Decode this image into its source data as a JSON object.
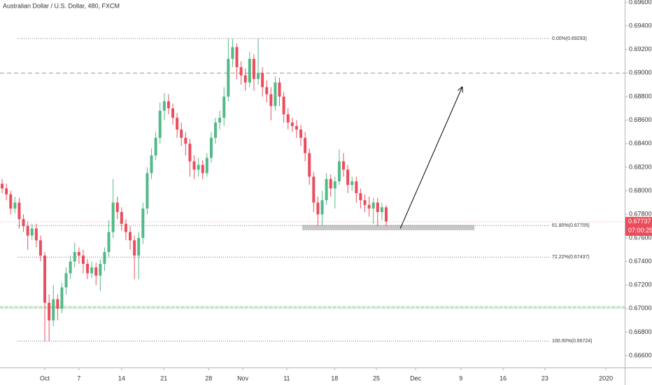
{
  "chart_data": {
    "type": "candlestick",
    "title": "Australian Dollar / U.S. Dollar, 480, FXCM",
    "x": [
      0,
      1,
      2,
      3,
      4,
      5,
      6,
      7,
      8,
      9,
      10,
      11,
      12,
      13,
      14,
      15,
      16,
      17,
      18,
      19,
      20,
      21,
      22,
      23,
      24,
      25,
      26,
      27,
      28,
      29,
      30,
      31,
      32,
      33,
      34,
      35,
      36,
      37,
      38,
      39,
      40,
      41,
      42,
      43,
      44,
      45,
      46,
      47,
      48,
      49,
      50,
      51,
      52,
      53,
      54,
      55,
      56,
      57,
      58,
      59,
      60,
      61,
      62,
      63,
      64,
      65,
      66,
      67,
      68,
      69,
      70,
      71,
      72,
      73,
      74,
      75,
      76,
      77,
      78,
      79,
      80,
      81,
      82,
      83,
      84,
      85,
      86,
      87,
      88,
      89,
      90
    ],
    "series": [
      {
        "up_color": "#53b987",
        "down_color": "#eb4d5c",
        "open": [
          0.6806,
          0.6802,
          0.6797,
          0.6785,
          0.679,
          0.6776,
          0.677,
          0.6762,
          0.6768,
          0.6758,
          0.6745,
          0.6705,
          0.669,
          0.6708,
          0.67,
          0.6718,
          0.673,
          0.674,
          0.6748,
          0.6745,
          0.6738,
          0.673,
          0.6735,
          0.6728,
          0.6738,
          0.6748,
          0.6765,
          0.679,
          0.6782,
          0.6772,
          0.6765,
          0.6758,
          0.6745,
          0.676,
          0.6785,
          0.6815,
          0.683,
          0.6845,
          0.6868,
          0.6876,
          0.687,
          0.6862,
          0.6852,
          0.6845,
          0.684,
          0.6825,
          0.6818,
          0.6822,
          0.6815,
          0.6828,
          0.6845,
          0.6858,
          0.6862,
          0.688,
          0.6912,
          0.6922,
          0.6905,
          0.6898,
          0.6892,
          0.6912,
          0.6895,
          0.69,
          0.6888,
          0.6882,
          0.6872,
          0.6892,
          0.688,
          0.6865,
          0.6858,
          0.6855,
          0.6852,
          0.6845,
          0.6832,
          0.6812,
          0.679,
          0.678,
          0.6792,
          0.681,
          0.6802,
          0.6808,
          0.6825,
          0.6818,
          0.6805,
          0.6808,
          0.6798,
          0.6792,
          0.6788,
          0.6785,
          0.679,
          0.6782,
          0.6786
        ],
        "high": [
          0.681,
          0.6806,
          0.68,
          0.6795,
          0.6794,
          0.678,
          0.6774,
          0.6772,
          0.6772,
          0.6762,
          0.6748,
          0.6712,
          0.672,
          0.6712,
          0.6722,
          0.6735,
          0.6745,
          0.6756,
          0.6752,
          0.675,
          0.6742,
          0.674,
          0.6739,
          0.6742,
          0.6752,
          0.6775,
          0.681,
          0.6795,
          0.6786,
          0.6776,
          0.677,
          0.6762,
          0.6765,
          0.679,
          0.682,
          0.6836,
          0.685,
          0.6875,
          0.6883,
          0.6882,
          0.6874,
          0.6866,
          0.6858,
          0.685,
          0.6844,
          0.683,
          0.6828,
          0.6826,
          0.6832,
          0.685,
          0.6862,
          0.6868,
          0.6888,
          0.6929,
          0.6929,
          0.6925,
          0.691,
          0.6904,
          0.6918,
          0.6916,
          0.6929,
          0.6905,
          0.6894,
          0.6888,
          0.6897,
          0.6896,
          0.6884,
          0.687,
          0.6862,
          0.686,
          0.6856,
          0.685,
          0.6836,
          0.6816,
          0.6795,
          0.68,
          0.6815,
          0.6814,
          0.6812,
          0.6835,
          0.6832,
          0.6822,
          0.6812,
          0.6812,
          0.6802,
          0.6797,
          0.6795,
          0.6794,
          0.6794,
          0.679,
          0.6788
        ],
        "low": [
          0.6798,
          0.6792,
          0.678,
          0.6781,
          0.6768,
          0.6765,
          0.675,
          0.6758,
          0.6752,
          0.674,
          0.6672,
          0.6672,
          0.6685,
          0.669,
          0.6696,
          0.6712,
          0.6725,
          0.6735,
          0.6738,
          0.673,
          0.6725,
          0.6726,
          0.672,
          0.6715,
          0.6732,
          0.6744,
          0.676,
          0.6776,
          0.6766,
          0.6758,
          0.675,
          0.6725,
          0.6725,
          0.6755,
          0.678,
          0.681,
          0.6826,
          0.684,
          0.686,
          0.6865,
          0.6856,
          0.6845,
          0.6838,
          0.683,
          0.6812,
          0.681,
          0.6812,
          0.681,
          0.6812,
          0.6824,
          0.684,
          0.6852,
          0.6855,
          0.6876,
          0.6905,
          0.6895,
          0.689,
          0.6885,
          0.6888,
          0.6885,
          0.689,
          0.688,
          0.6875,
          0.686,
          0.6868,
          0.6872,
          0.6858,
          0.6852,
          0.685,
          0.6845,
          0.6838,
          0.6825,
          0.6805,
          0.6782,
          0.677,
          0.677,
          0.6788,
          0.6795,
          0.6785,
          0.6805,
          0.6812,
          0.6798,
          0.68,
          0.679,
          0.6785,
          0.6782,
          0.6778,
          0.6772,
          0.677,
          0.6775,
          0.677
        ],
        "close": [
          0.6802,
          0.6797,
          0.6785,
          0.679,
          0.6776,
          0.677,
          0.6762,
          0.6768,
          0.6758,
          0.6745,
          0.6705,
          0.669,
          0.6708,
          0.67,
          0.6718,
          0.673,
          0.674,
          0.6748,
          0.6745,
          0.6738,
          0.673,
          0.6735,
          0.6728,
          0.6738,
          0.6748,
          0.6765,
          0.679,
          0.6782,
          0.6772,
          0.6765,
          0.6758,
          0.6745,
          0.676,
          0.6785,
          0.6815,
          0.683,
          0.6845,
          0.6868,
          0.6876,
          0.687,
          0.6862,
          0.6852,
          0.6845,
          0.684,
          0.6825,
          0.6818,
          0.6822,
          0.6815,
          0.6828,
          0.6845,
          0.6858,
          0.6862,
          0.688,
          0.6912,
          0.6922,
          0.6905,
          0.6898,
          0.6892,
          0.6912,
          0.6895,
          0.69,
          0.6888,
          0.6882,
          0.6872,
          0.6892,
          0.688,
          0.6865,
          0.6858,
          0.6855,
          0.6852,
          0.6845,
          0.6832,
          0.6812,
          0.679,
          0.678,
          0.6792,
          0.681,
          0.6802,
          0.6808,
          0.6825,
          0.6818,
          0.6805,
          0.6808,
          0.6798,
          0.6792,
          0.6788,
          0.6785,
          0.679,
          0.6782,
          0.6786,
          0.6774
        ]
      }
    ],
    "xlim": [
      -0.5,
      145.9
    ],
    "xticks": [
      {
        "value": 10,
        "label": "Oct"
      },
      {
        "value": 18,
        "label": "7"
      },
      {
        "value": 28,
        "label": "14"
      },
      {
        "value": 37.9,
        "label": "21"
      },
      {
        "value": 48.4,
        "label": "28"
      },
      {
        "value": 56.4,
        "label": "Nov"
      },
      {
        "value": 66.7,
        "label": "11"
      },
      {
        "value": 77.9,
        "label": "18"
      },
      {
        "value": 87.7,
        "label": "25"
      },
      {
        "value": 96.9,
        "label": "Dec"
      },
      {
        "value": 107.5,
        "label": "9"
      },
      {
        "value": 117.4,
        "label": "16"
      },
      {
        "value": 127.2,
        "label": "23"
      },
      {
        "value": 141.5,
        "label": "2020"
      }
    ],
    "ylim": [
      0.665,
      0.6962
    ],
    "yticks": [
      {
        "value": 0.696,
        "label": "0.69600"
      },
      {
        "value": 0.694,
        "label": "0.69400"
      },
      {
        "value": 0.692,
        "label": "0.69200"
      },
      {
        "value": 0.69,
        "label": "0.69000"
      },
      {
        "value": 0.688,
        "label": "0.68800"
      },
      {
        "value": 0.686,
        "label": "0.68600"
      },
      {
        "value": 0.684,
        "label": "0.68400"
      },
      {
        "value": 0.682,
        "label": "0.68200"
      },
      {
        "value": 0.68,
        "label": "0.68000"
      },
      {
        "value": 0.678,
        "label": "0.67800"
      },
      {
        "value": 0.676,
        "label": "0.67600"
      },
      {
        "value": 0.674,
        "label": "0.67400"
      },
      {
        "value": 0.672,
        "label": "0.67200"
      },
      {
        "value": 0.67,
        "label": "0.67000"
      },
      {
        "value": 0.668,
        "label": "0.66800"
      },
      {
        "value": 0.666,
        "label": "0.66600"
      }
    ],
    "fib_levels": [
      {
        "value": 0.69293,
        "label": "0.00%(0.69293)"
      },
      {
        "value": 0.67705,
        "label": "61.80%(0.67705)"
      },
      {
        "value": 0.67437,
        "label": "72.22%(0.67437)"
      },
      {
        "value": 0.66724,
        "label": "100.00%(0.66724)"
      }
    ],
    "resistance_line": 0.69,
    "green_zone": [
      0.66995,
      0.67025
    ],
    "support_box": {
      "x": [
        70.3,
        110.7
      ],
      "y": [
        0.67665,
        0.6771
      ]
    },
    "arrow": {
      "x": [
        93.3,
        107.8
      ],
      "y": [
        0.6768,
        0.6888
      ]
    },
    "last_price": {
      "value": 0.67737,
      "label": "0.67737"
    },
    "countdown": "07:00:25"
  }
}
